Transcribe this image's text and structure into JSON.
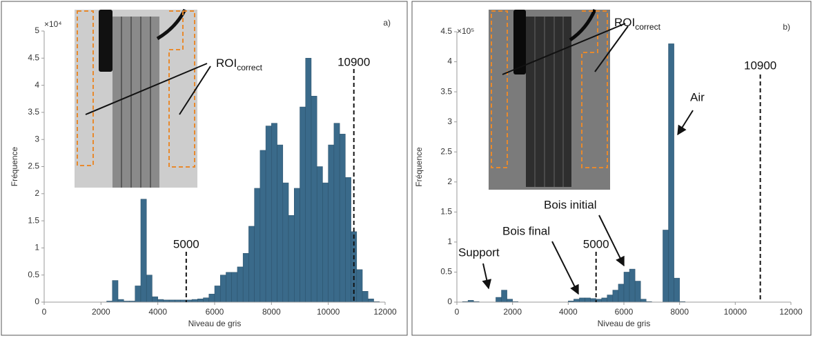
{
  "chart_data": [
    {
      "type": "histogram",
      "panel_label": "a)",
      "scale_label": "×10⁴",
      "xlabel": "Niveau de gris",
      "ylabel": "Fréquence",
      "color": "#3a6a8a",
      "bins": [
        0,
        200,
        400,
        600,
        800,
        1000,
        1200,
        1400,
        1600,
        1800,
        2000,
        2200,
        2400,
        2600,
        2800,
        3000,
        3200,
        3400,
        3600,
        3800,
        4000,
        4200,
        4400,
        4600,
        4800,
        5000,
        5200,
        5400,
        5600,
        5800,
        6000,
        6200,
        6400,
        6600,
        6800,
        7000,
        7200,
        7400,
        7600,
        7800,
        8000,
        8200,
        8400,
        8600,
        8800,
        9000,
        9200,
        9400,
        9600,
        9800,
        10000,
        10200,
        10400,
        10600,
        10800,
        11000,
        11200,
        11400,
        11600,
        11800,
        12000
      ],
      "counts": [
        0,
        0,
        0,
        0,
        0,
        0,
        0,
        0,
        0,
        0,
        0,
        0.02,
        0.4,
        0.05,
        0.02,
        0.02,
        0.3,
        1.9,
        0.5,
        0.1,
        0.05,
        0.04,
        0.04,
        0.04,
        0.04,
        0.04,
        0.05,
        0.06,
        0.08,
        0.15,
        0.3,
        0.5,
        0.55,
        0.55,
        0.65,
        0.9,
        1.4,
        2.1,
        2.8,
        3.25,
        3.3,
        2.9,
        2.2,
        1.6,
        2.1,
        3.6,
        4.5,
        3.8,
        2.5,
        2.2,
        2.9,
        3.3,
        3.1,
        2.3,
        1.3,
        0.6,
        0.2,
        0.06,
        0.01,
        0
      ],
      "xlim": [
        0,
        12000
      ],
      "ylim": [
        0,
        5
      ],
      "xticks": [
        0,
        2000,
        4000,
        6000,
        8000,
        10000,
        12000
      ],
      "yticks": [
        0,
        0.5,
        1,
        1.5,
        2,
        2.5,
        3,
        3.5,
        4,
        4.5,
        5
      ],
      "vlines": [
        {
          "value": 5000,
          "label": "5000"
        },
        {
          "value": 10900,
          "label": "10900"
        }
      ],
      "inset_label": {
        "main": "ROI",
        "sub": "correct"
      }
    },
    {
      "type": "histogram",
      "panel_label": "b)",
      "scale_label": "×10⁵",
      "xlabel": "Niveau de gris",
      "ylabel": "Fréquence",
      "color": "#3a6a8a",
      "bins": [
        0,
        200,
        400,
        600,
        800,
        1000,
        1200,
        1400,
        1600,
        1800,
        2000,
        2200,
        2400,
        2600,
        2800,
        3000,
        3200,
        3400,
        3600,
        3800,
        4000,
        4200,
        4400,
        4600,
        4800,
        5000,
        5200,
        5400,
        5600,
        5800,
        6000,
        6200,
        6400,
        6600,
        6800,
        7000,
        7200,
        7400,
        7600,
        7800,
        8000,
        8200,
        8400,
        8600,
        8800,
        9000,
        9200,
        9400,
        9600,
        9800,
        10000,
        10200,
        10400,
        10600,
        10800,
        11000,
        11200,
        11400,
        11600,
        11800,
        12000
      ],
      "counts": [
        0,
        0.01,
        0.03,
        0.01,
        0,
        0,
        0,
        0.08,
        0.2,
        0.05,
        0.01,
        0,
        0,
        0,
        0,
        0,
        0,
        0,
        0,
        0,
        0.02,
        0.05,
        0.07,
        0.07,
        0.06,
        0.05,
        0.07,
        0.12,
        0.2,
        0.3,
        0.5,
        0.55,
        0.35,
        0.05,
        0.01,
        0,
        0,
        1.2,
        4.3,
        0.4,
        0.01,
        0,
        0,
        0,
        0,
        0,
        0,
        0,
        0,
        0,
        0,
        0,
        0,
        0,
        0,
        0,
        0,
        0,
        0,
        0
      ],
      "xlim": [
        0,
        12000
      ],
      "ylim": [
        0,
        4.5
      ],
      "xticks": [
        0,
        2000,
        4000,
        6000,
        8000,
        10000,
        12000
      ],
      "yticks": [
        0,
        0.5,
        1,
        1.5,
        2,
        2.5,
        3,
        3.5,
        4,
        4.5
      ],
      "vlines": [
        {
          "value": 5000,
          "label": "5000"
        },
        {
          "value": 10900,
          "label": "10900"
        }
      ],
      "inset_label": {
        "main": "ROI",
        "sub": "correct"
      },
      "annotations": [
        "Support",
        "Bois final",
        "Bois initial",
        "Air"
      ]
    }
  ]
}
